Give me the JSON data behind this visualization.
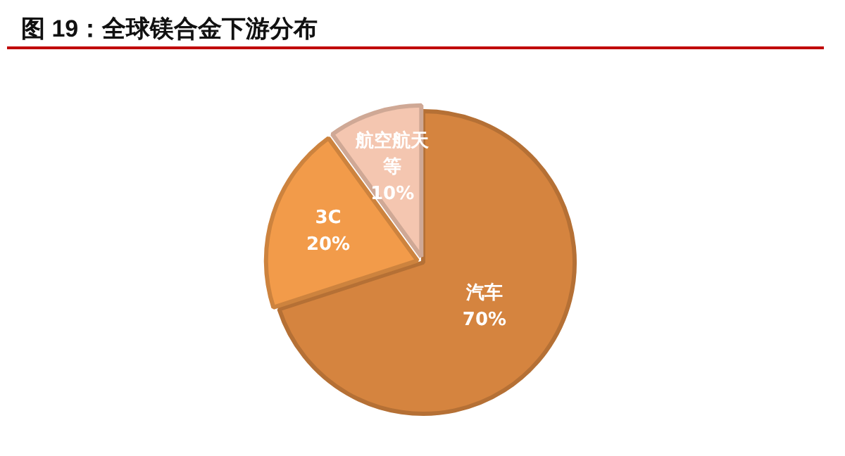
{
  "chart_data": {
    "type": "pie",
    "title": "图 19：全球镁合金下游分布",
    "categories": [
      "汽车",
      "3C",
      "航空航天等"
    ],
    "values": [
      70,
      20,
      10
    ],
    "colors": [
      "#d5843f",
      "#f29b4a",
      "#f4c6b0"
    ],
    "value_labels": [
      "70%",
      "20%",
      "10%"
    ]
  }
}
